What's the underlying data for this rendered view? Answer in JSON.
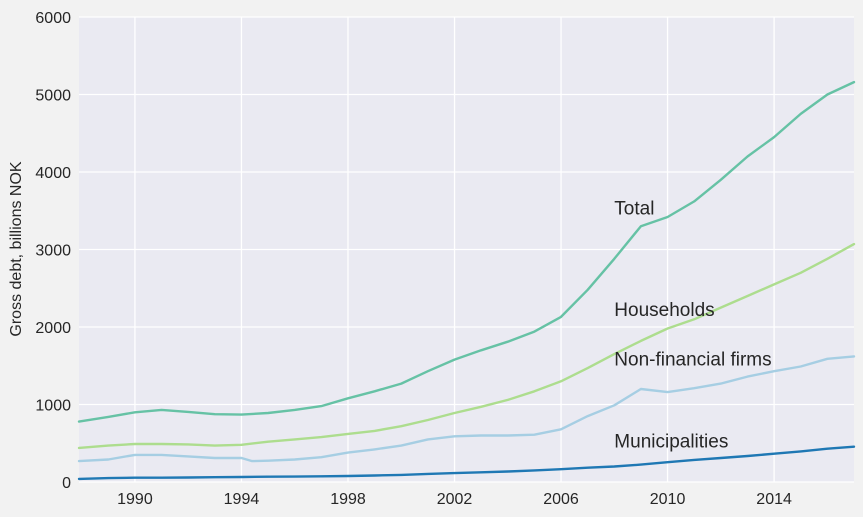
{
  "chart_data": {
    "type": "line",
    "title": "",
    "xlabel": "",
    "ylabel": "Gross debt, billions NOK",
    "xlim": [
      1987.9,
      2017.0
    ],
    "ylim": [
      0,
      6000
    ],
    "x_ticks": [
      1990,
      1994,
      1998,
      2002,
      2006,
      2010,
      2014
    ],
    "y_ticks": [
      0,
      1000,
      2000,
      3000,
      4000,
      5000,
      6000
    ],
    "grid": true,
    "legend": "none",
    "plot_background": "#eaeaf2",
    "series": [
      {
        "name": "Total",
        "color": "#66c2a5",
        "label_pos": [
          2008.0,
          3530
        ],
        "points": [
          [
            1987.9,
            780
          ],
          [
            1989,
            840
          ],
          [
            1990,
            900
          ],
          [
            1991,
            930
          ],
          [
            1992,
            905
          ],
          [
            1993,
            875
          ],
          [
            1994,
            870
          ],
          [
            1995,
            890
          ],
          [
            1996,
            930
          ],
          [
            1997,
            980
          ],
          [
            1998,
            1080
          ],
          [
            1999,
            1170
          ],
          [
            2000,
            1270
          ],
          [
            2001,
            1430
          ],
          [
            2002,
            1580
          ],
          [
            2003,
            1700
          ],
          [
            2004,
            1810
          ],
          [
            2005,
            1940
          ],
          [
            2006,
            2130
          ],
          [
            2007,
            2480
          ],
          [
            2008,
            2880
          ],
          [
            2009,
            3300
          ],
          [
            2010,
            3420
          ],
          [
            2011,
            3620
          ],
          [
            2012,
            3900
          ],
          [
            2013,
            4200
          ],
          [
            2014,
            4450
          ],
          [
            2015,
            4750
          ],
          [
            2016,
            5000
          ],
          [
            2017,
            5160
          ]
        ]
      },
      {
        "name": "Households",
        "color": "#addd8e",
        "label_pos": [
          2008.0,
          2220
        ],
        "points": [
          [
            1987.9,
            440
          ],
          [
            1989,
            470
          ],
          [
            1990,
            490
          ],
          [
            1991,
            490
          ],
          [
            1992,
            485
          ],
          [
            1993,
            470
          ],
          [
            1994,
            480
          ],
          [
            1995,
            520
          ],
          [
            1996,
            550
          ],
          [
            1997,
            580
          ],
          [
            1998,
            620
          ],
          [
            1999,
            660
          ],
          [
            2000,
            720
          ],
          [
            2001,
            800
          ],
          [
            2002,
            890
          ],
          [
            2003,
            970
          ],
          [
            2004,
            1060
          ],
          [
            2005,
            1170
          ],
          [
            2006,
            1300
          ],
          [
            2007,
            1470
          ],
          [
            2008,
            1650
          ],
          [
            2009,
            1820
          ],
          [
            2010,
            1980
          ],
          [
            2011,
            2100
          ],
          [
            2012,
            2250
          ],
          [
            2013,
            2400
          ],
          [
            2014,
            2550
          ],
          [
            2015,
            2700
          ],
          [
            2016,
            2880
          ],
          [
            2017,
            3070
          ]
        ]
      },
      {
        "name": "Non-financial firms",
        "color": "#a6cee3",
        "label_pos": [
          2008.0,
          1580
        ],
        "points": [
          [
            1987.9,
            270
          ],
          [
            1989,
            290
          ],
          [
            1990,
            350
          ],
          [
            1991,
            350
          ],
          [
            1992,
            330
          ],
          [
            1993,
            310
          ],
          [
            1994,
            310
          ],
          [
            1994.4,
            270
          ],
          [
            1995,
            275
          ],
          [
            1996,
            290
          ],
          [
            1997,
            320
          ],
          [
            1998,
            380
          ],
          [
            1999,
            420
          ],
          [
            2000,
            470
          ],
          [
            2001,
            550
          ],
          [
            2002,
            590
          ],
          [
            2003,
            600
          ],
          [
            2004,
            600
          ],
          [
            2005,
            610
          ],
          [
            2006,
            680
          ],
          [
            2007,
            850
          ],
          [
            2008,
            990
          ],
          [
            2009,
            1200
          ],
          [
            2010,
            1160
          ],
          [
            2011,
            1210
          ],
          [
            2012,
            1270
          ],
          [
            2013,
            1360
          ],
          [
            2014,
            1430
          ],
          [
            2015,
            1490
          ],
          [
            2016,
            1590
          ],
          [
            2017,
            1620
          ]
        ]
      },
      {
        "name": "Municipalities",
        "color": "#1f78b4",
        "label_pos": [
          2008.0,
          520
        ],
        "points": [
          [
            1987.9,
            40
          ],
          [
            1989,
            50
          ],
          [
            1990,
            55
          ],
          [
            1991,
            55
          ],
          [
            1992,
            58
          ],
          [
            1993,
            62
          ],
          [
            1994,
            65
          ],
          [
            1995,
            68
          ],
          [
            1996,
            70
          ],
          [
            1997,
            74
          ],
          [
            1998,
            78
          ],
          [
            1999,
            84
          ],
          [
            2000,
            92
          ],
          [
            2001,
            105
          ],
          [
            2002,
            115
          ],
          [
            2003,
            125
          ],
          [
            2004,
            135
          ],
          [
            2005,
            150
          ],
          [
            2006,
            165
          ],
          [
            2007,
            185
          ],
          [
            2008,
            200
          ],
          [
            2009,
            225
          ],
          [
            2010,
            255
          ],
          [
            2011,
            285
          ],
          [
            2012,
            310
          ],
          [
            2013,
            335
          ],
          [
            2014,
            365
          ],
          [
            2015,
            395
          ],
          [
            2016,
            430
          ],
          [
            2017,
            455
          ]
        ]
      }
    ]
  }
}
